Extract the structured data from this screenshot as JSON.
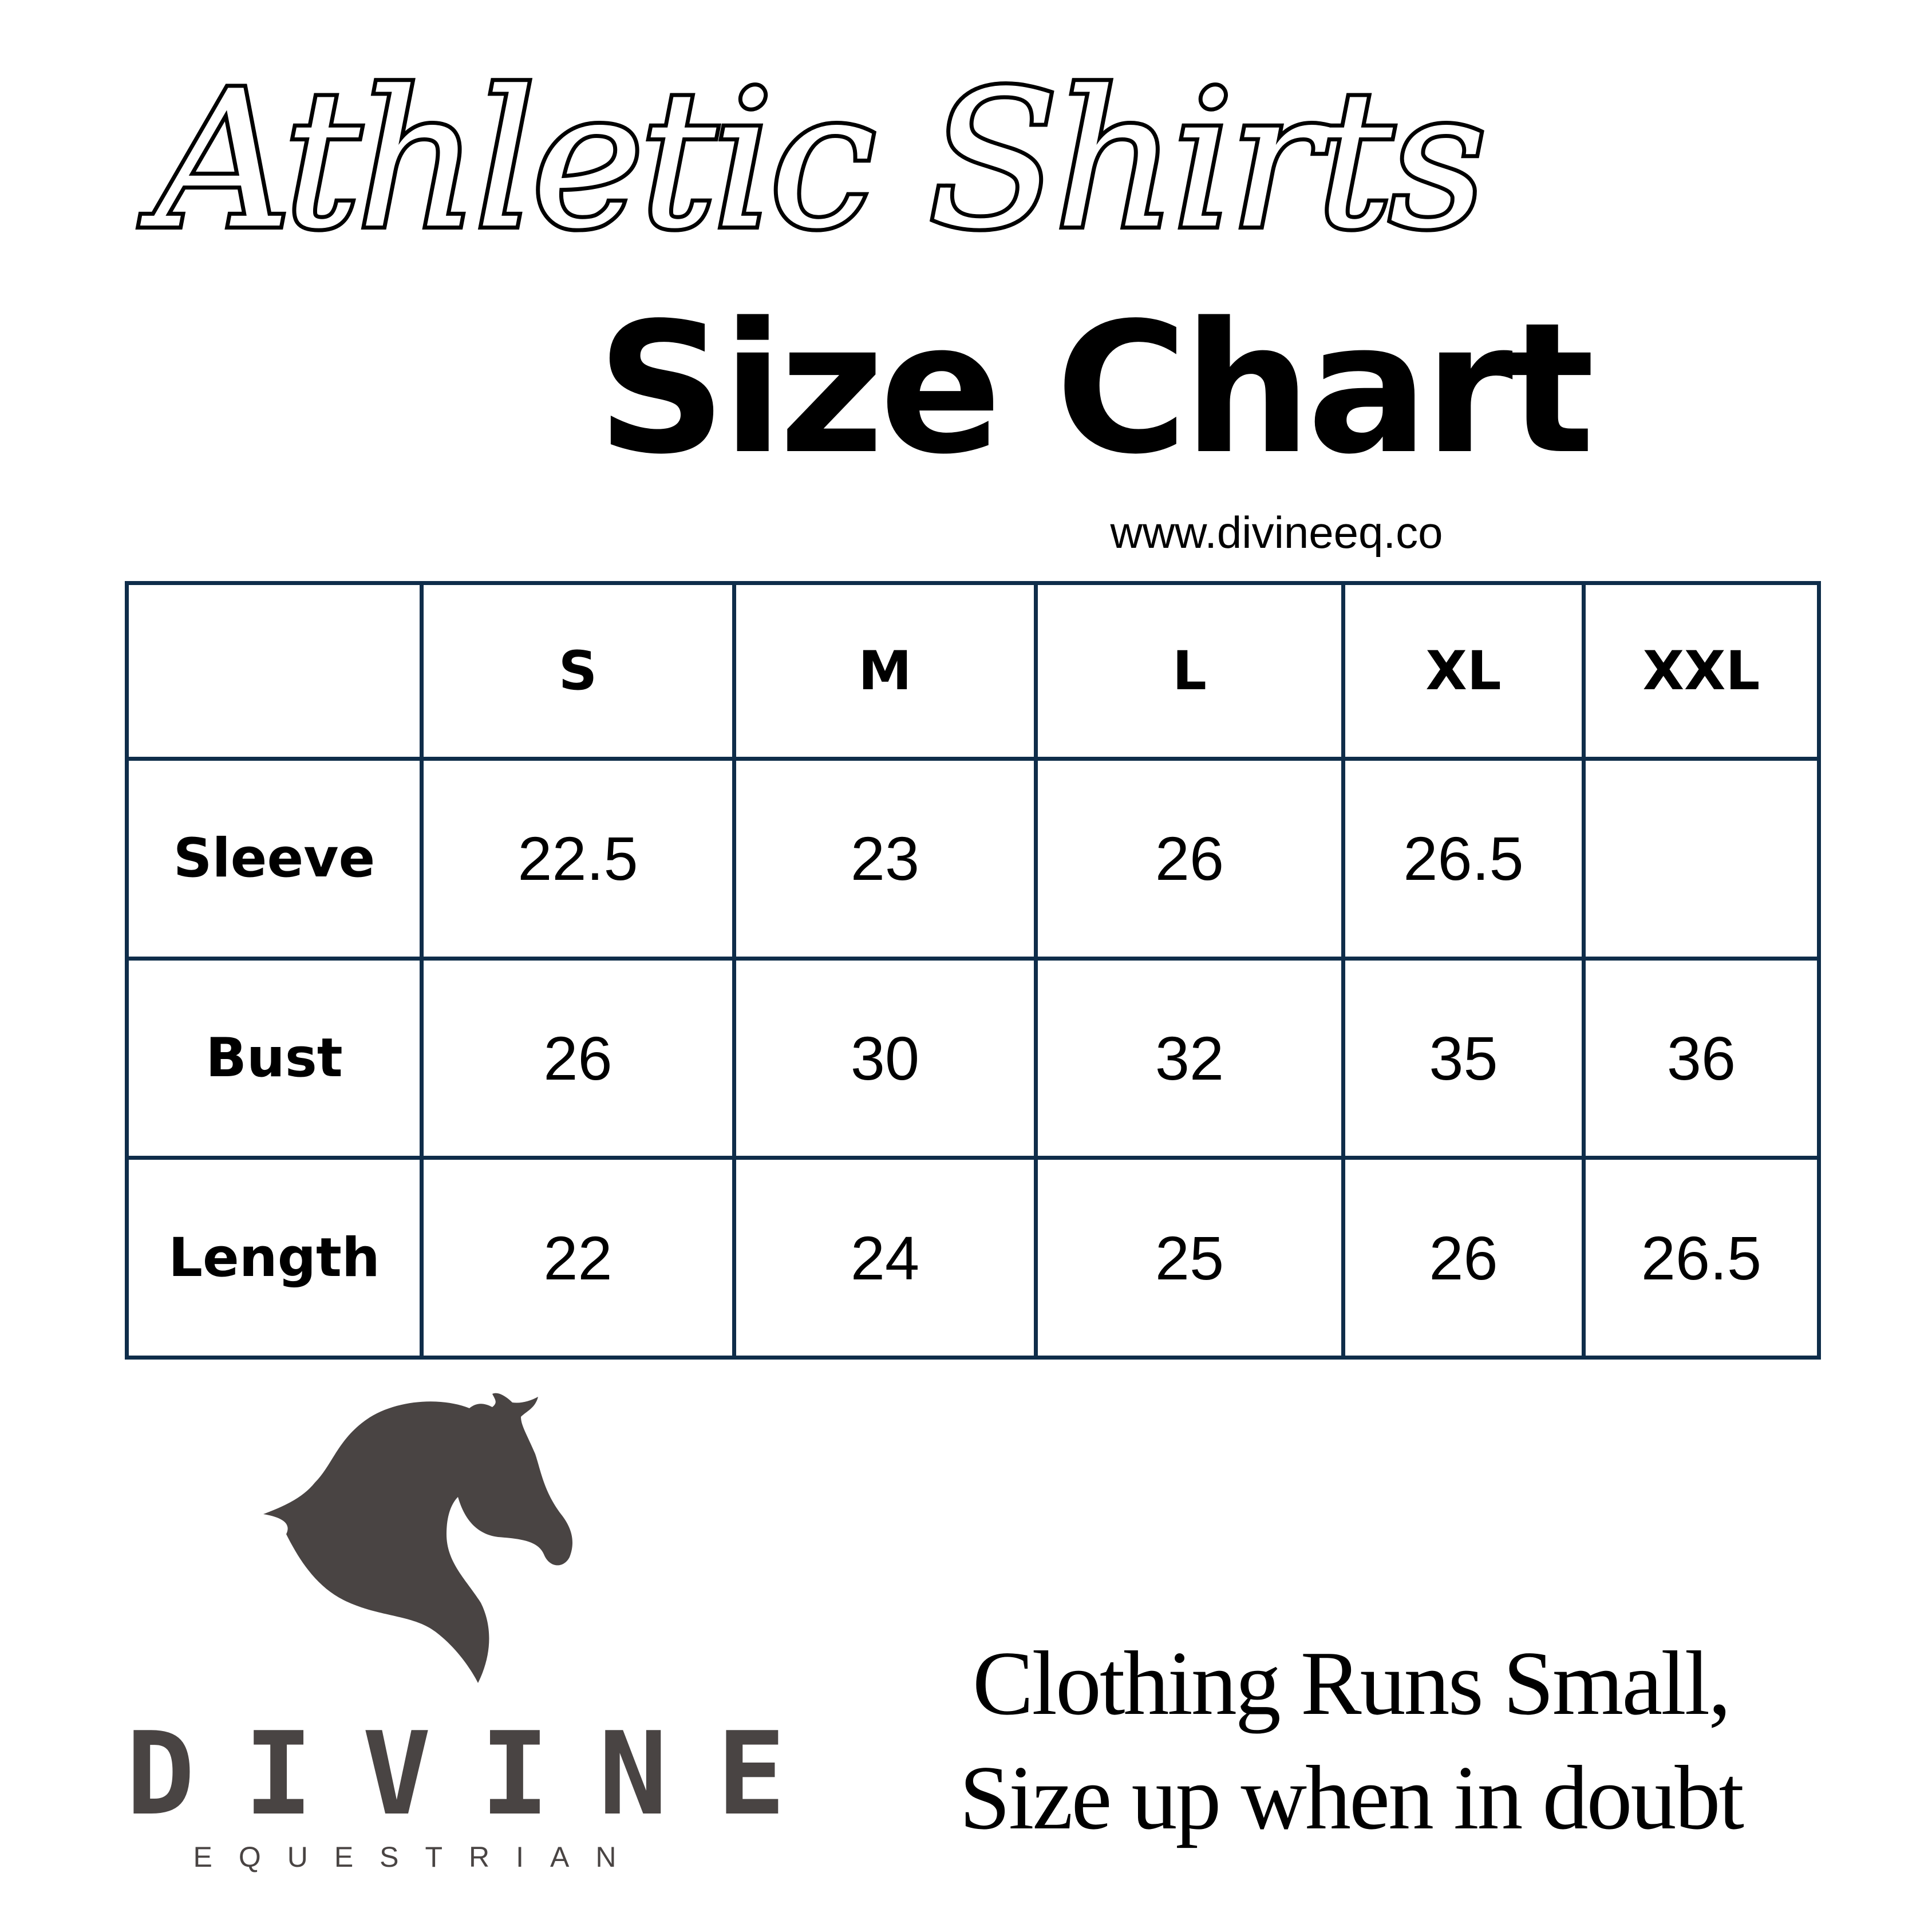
{
  "header": {
    "script_title": "Athletic Shirts",
    "title": "Size Chart",
    "url": "www.divineeq.co"
  },
  "table": {
    "columns": [
      "",
      "S",
      "M",
      "L",
      "XL",
      "XXL"
    ],
    "rows": [
      {
        "label": "Sleeve",
        "values": [
          "22.5",
          "23",
          "26",
          "26.5",
          ""
        ]
      },
      {
        "label": "Bust",
        "values": [
          "26",
          "30",
          "32",
          "35",
          "36"
        ]
      },
      {
        "label": "Length",
        "values": [
          "22",
          "24",
          "25",
          "26",
          "26.5"
        ]
      }
    ],
    "border_color": "#0f2d4a"
  },
  "logo": {
    "icon": "horse-head-icon",
    "brand": "DIVINE",
    "sub_brand": "EQUESTRIAN",
    "color": "#494443"
  },
  "note": {
    "line1": "Clothing Runs Small,",
    "line2": "Size up when in doubt"
  }
}
